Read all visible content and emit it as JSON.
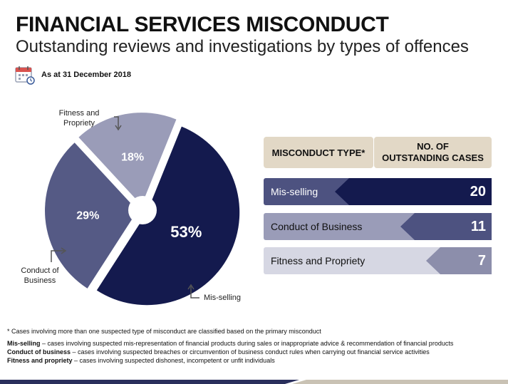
{
  "header": {
    "title": "FINANCIAL SERVICES MISCONDUCT",
    "subtitle": "Outstanding reviews and investigations by types of offences",
    "date_label": "As at 31 December 2018"
  },
  "chart_data": {
    "type": "pie",
    "title": "",
    "slices": [
      {
        "label": "Mis-selling",
        "value": 53,
        "display": "53%",
        "color": "#141a4e"
      },
      {
        "label": "Conduct of Business",
        "value": 29,
        "display": "29%",
        "color": "#555a85"
      },
      {
        "label": "Fitness and Propriety",
        "value": 18,
        "display": "18%",
        "color": "#9a9cb8"
      }
    ]
  },
  "pie_labels": {
    "fitness_line1": "Fitness and",
    "fitness_line2": "Propriety",
    "conduct_line1": "Conduct of",
    "conduct_line2": "Business",
    "misselling": "Mis-selling"
  },
  "table": {
    "col1": "MISCONDUCT TYPE*",
    "col2_line1": "NO. OF",
    "col2_line2": "OUTSTANDING CASES",
    "rows": [
      {
        "type": "Mis-selling",
        "count": "20",
        "light": "#4d5280",
        "dark": "#141a4e",
        "text": "#ffffff"
      },
      {
        "type": "Conduct of Business",
        "count": "11",
        "light": "#9a9cb8",
        "dark": "#4d5280",
        "text": "#111111"
      },
      {
        "type": "Fitness and Propriety",
        "count": "7",
        "light": "#d6d7e3",
        "dark": "#8c8eab",
        "text": "#111111"
      }
    ]
  },
  "footnotes": {
    "note": "* Cases involving more than one suspected type of misconduct are classified based on the primary misconduct",
    "def1_term": "Mis-selling",
    "def1_text": " – cases involving suspected mis-representation of financial products during sales or inappropriate advice & recommendation of financial products",
    "def2_term": "Conduct of business",
    "def2_text": " – cases involving suspected breaches or circumvention of business conduct rules when carrying out financial service activities",
    "def3_term": "Fitness and propriety",
    "def3_text": " – cases involving suspected dishonest, incompetent or unfit individuals"
  }
}
